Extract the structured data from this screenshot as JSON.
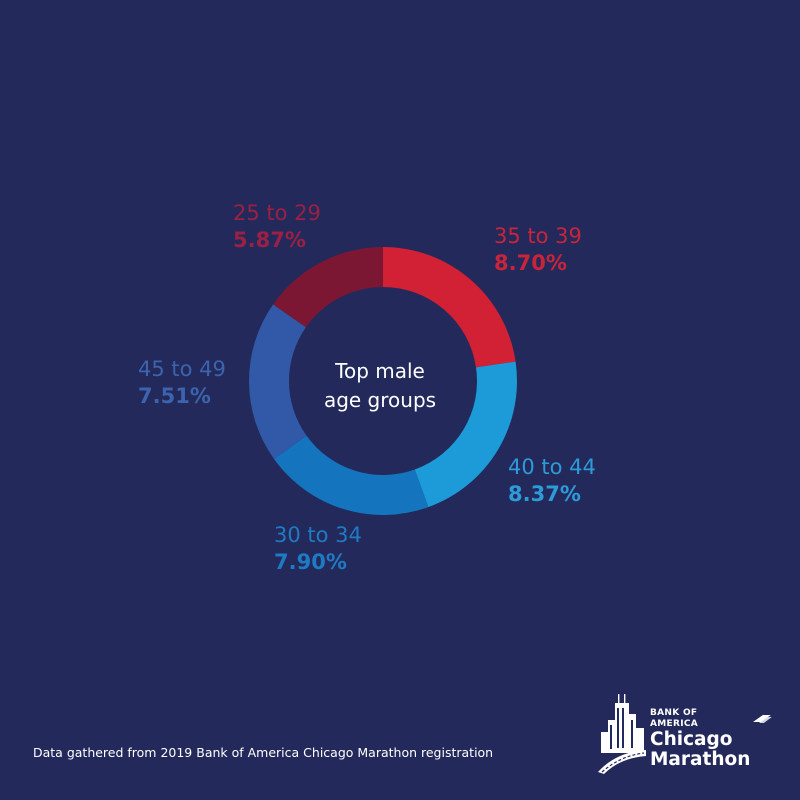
{
  "chart_data": {
    "type": "pie",
    "title": "Top male age groups",
    "slices": [
      {
        "label": "35 to 39",
        "value": 8.7,
        "value_label": "8.70%",
        "color": "#d22134"
      },
      {
        "label": "40 to 44",
        "value": 8.37,
        "value_label": "8.37%",
        "color": "#1d9ad8"
      },
      {
        "label": "30 to 34",
        "value": 7.9,
        "value_label": "7.90%",
        "color": "#1475be"
      },
      {
        "label": "45 to 49",
        "value": 7.51,
        "value_label": "7.51%",
        "color": "#3159a7"
      },
      {
        "label": "25 to 29",
        "value": 5.87,
        "value_label": "5.87%",
        "color": "#7c1733"
      }
    ],
    "label_colors": [
      "#c8243a",
      "#2d9bd8",
      "#1f7ac4",
      "#3c63ad",
      "#9a2045"
    ]
  },
  "center": {
    "line1": "Top male",
    "line2": "age groups"
  },
  "footnote": "Data gathered from 2019 Bank of America Chicago Marathon registration",
  "logo": {
    "brand": "BANK OF AMERICA",
    "line1": "Chicago",
    "line2": "Marathon"
  }
}
